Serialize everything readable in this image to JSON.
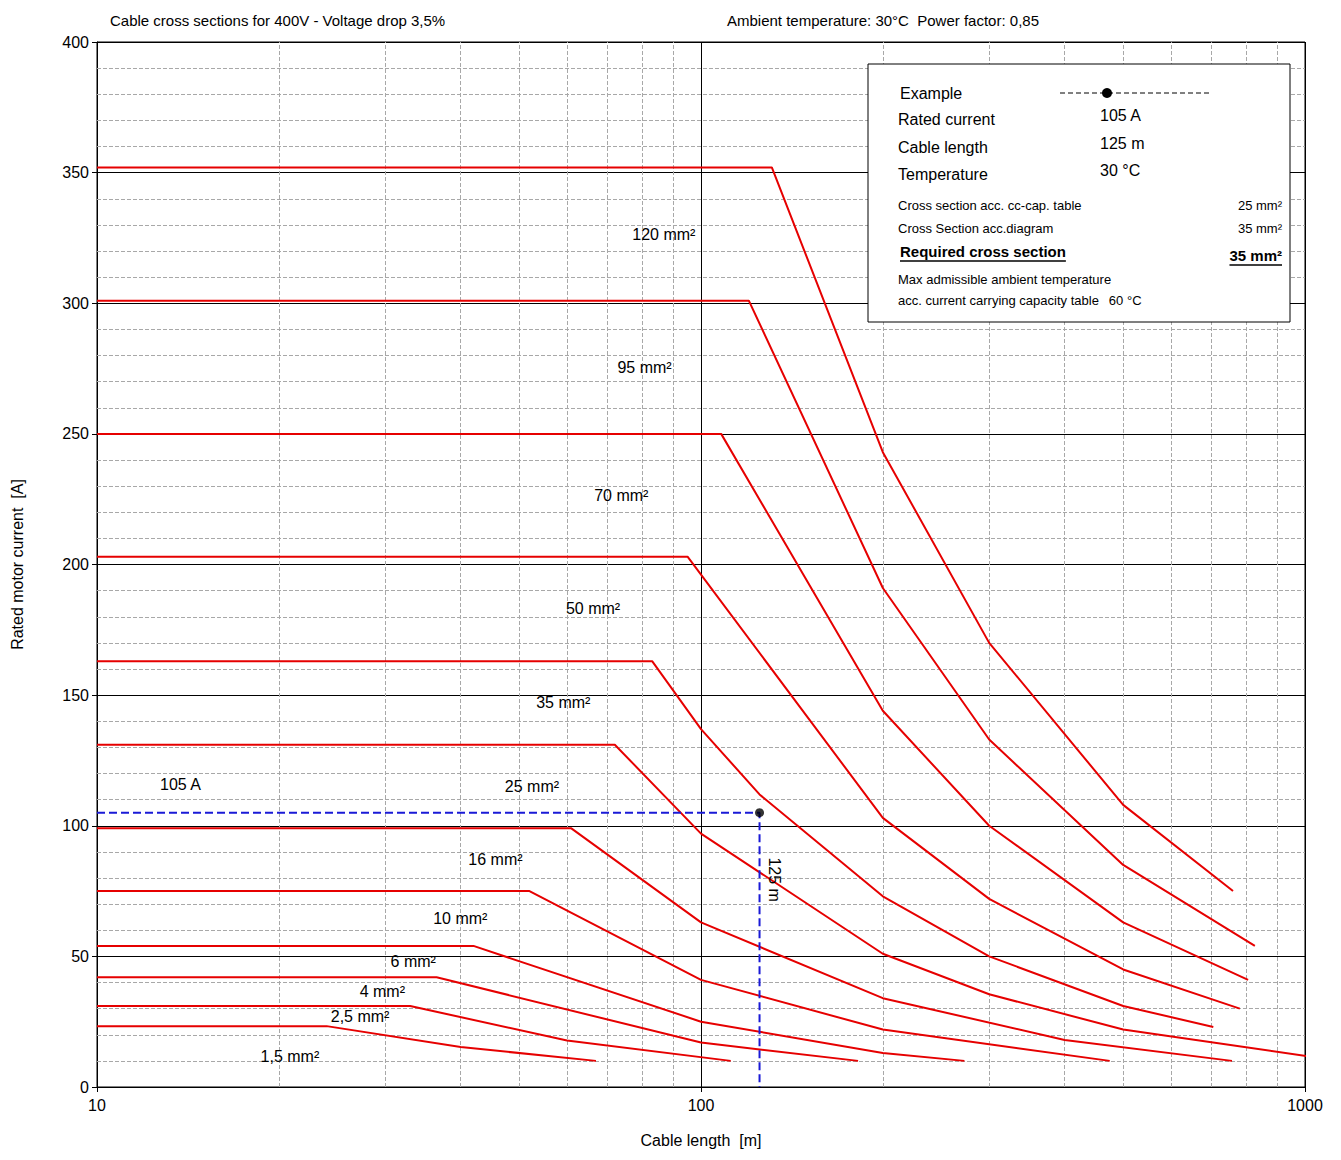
{
  "chart_data": {
    "type": "line",
    "title": "Cable cross sections for 400V - Voltage drop 3,5%",
    "subtitle": "Ambient temperature: 30°C  Power factor: 0,85",
    "x_label": "Cable length  [m]",
    "y_label": "Rated motor current  [A]",
    "log": "x",
    "grid": true,
    "xlim": [
      10,
      1000
    ],
    "xticks": [
      10,
      100,
      1000
    ],
    "ylim": [
      0,
      400
    ],
    "yticks": [
      0,
      50,
      100,
      150,
      200,
      250,
      300,
      350,
      400
    ],
    "color": "#e60000",
    "series": [
      {
        "name": "120 mm²",
        "x": [
          10,
          131,
          200,
          300,
          500,
          760
        ],
        "values": [
          352,
          352,
          243,
          170,
          108,
          75
        ]
      },
      {
        "name": "95 mm²",
        "x": [
          10,
          120,
          200,
          300,
          500,
          826
        ],
        "values": [
          301,
          301,
          191,
          133,
          85,
          54
        ]
      },
      {
        "name": "70 mm²",
        "x": [
          10,
          108,
          200,
          300,
          500,
          805
        ],
        "values": [
          250,
          250,
          144,
          100,
          63,
          41
        ]
      },
      {
        "name": "50 mm²",
        "x": [
          10,
          95,
          200,
          300,
          500,
          780
        ],
        "values": [
          203,
          203,
          103,
          72,
          45,
          30
        ]
      },
      {
        "name": "35 mm²",
        "x": [
          10,
          83,
          100,
          125,
          200,
          300,
          500,
          705
        ],
        "values": [
          163,
          163,
          137,
          112,
          73,
          50,
          31,
          23
        ]
      },
      {
        "name": "25 mm²",
        "x": [
          10,
          72,
          100,
          200,
          300,
          500,
          1030
        ],
        "values": [
          131,
          131,
          97,
          51,
          35.5,
          22,
          11.5
        ]
      },
      {
        "name": "16 mm²",
        "x": [
          10,
          61,
          100,
          200,
          400,
          757
        ],
        "values": [
          99,
          99,
          63,
          34,
          18,
          10
        ]
      },
      {
        "name": "10 mm²",
        "x": [
          10,
          52,
          100,
          200,
          475
        ],
        "values": [
          75,
          75,
          41,
          22,
          10
        ]
      },
      {
        "name": "6 mm²",
        "x": [
          10,
          42,
          100,
          200,
          273
        ],
        "values": [
          54,
          54,
          25,
          13,
          10
        ]
      },
      {
        "name": "4 mm²",
        "x": [
          10,
          36.5,
          100,
          182
        ],
        "values": [
          42,
          42,
          17,
          10
        ]
      },
      {
        "name": "2,5 mm²",
        "x": [
          10,
          33,
          60,
          112
        ],
        "values": [
          31,
          31,
          17.8,
          10
        ]
      },
      {
        "name": "1,5 mm²",
        "x": [
          10,
          24,
          40,
          67
        ],
        "values": [
          23.3,
          23.3,
          15.3,
          10
        ]
      }
    ],
    "example": {
      "title": "Example",
      "current": 105,
      "length": 125,
      "current_label": "105 A",
      "length_label": "125 m",
      "color": "#1a1ad6",
      "marker": "circle",
      "rows": [
        {
          "label": "Rated current",
          "value": "105 A"
        },
        {
          "label": "Cable length",
          "value": "125 m"
        },
        {
          "label": "Temperature",
          "value": "30 °C"
        }
      ],
      "details": [
        {
          "label": "Cross section acc. cc-cap. table",
          "value": "25 mm²"
        },
        {
          "label": "Cross Section acc.diagram",
          "value": "35 mm²"
        }
      ],
      "required": {
        "label": "Required cross section",
        "value": "35 mm²"
      },
      "note": {
        "lines": [
          "Max admissible ambient temperature",
          "acc. current carrying capacity table"
        ],
        "value": "60 °C"
      }
    }
  }
}
